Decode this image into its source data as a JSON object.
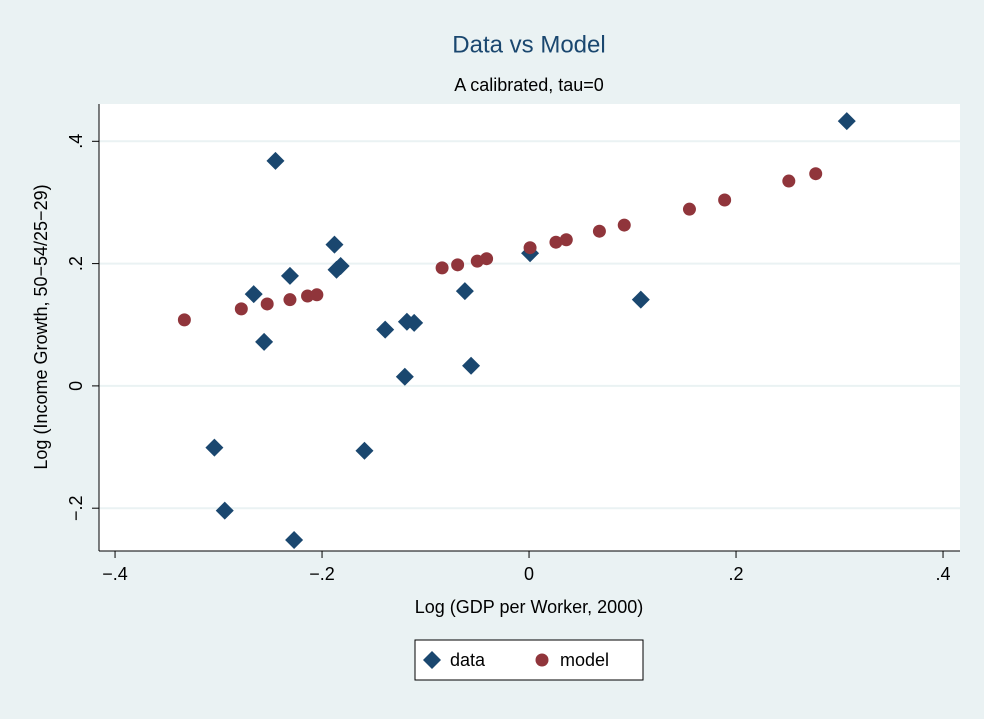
{
  "chart_data": {
    "type": "scatter",
    "title": "Data vs Model",
    "subtitle": "A calibrated, tau=0",
    "x_label": "Log (GDP per Worker, 2000)",
    "y_label": "Log (Income Growth, 50−54/25−29)",
    "xlim": [
      -0.4155,
      0.4164
    ],
    "ylim": [
      -0.27,
      0.461
    ],
    "xticks": [
      {
        "value": -0.4,
        "label": "−.4"
      },
      {
        "value": -0.2,
        "label": "−.2"
      },
      0,
      {
        "value": 0.2,
        "label": ".2"
      },
      {
        "value": 0.4,
        "label": ".4"
      }
    ],
    "yticks": [
      {
        "value": -0.2,
        "label": "−.2"
      },
      0,
      {
        "value": 0.2,
        "label": ".2"
      },
      {
        "value": 0.4,
        "label": ".4"
      }
    ],
    "grid": true,
    "legend": "bottom",
    "series": [
      {
        "name": "data",
        "color": "#1a476f",
        "marker": "diamond",
        "x": [
          0.307,
          -0.245,
          -0.188,
          -0.231,
          -0.186,
          -0.182,
          -0.266,
          -0.256,
          -0.139,
          -0.118,
          -0.111,
          -0.062,
          0.001,
          0.108,
          -0.12,
          -0.056,
          -0.159,
          -0.304,
          -0.294,
          -0.227
        ],
        "values": [
          0.433,
          0.368,
          0.231,
          0.18,
          0.19,
          0.196,
          0.15,
          0.072,
          0.092,
          0.105,
          0.103,
          0.155,
          0.217,
          0.141,
          0.015,
          0.033,
          -0.106,
          -0.101,
          -0.204,
          -0.252
        ]
      },
      {
        "name": "model",
        "color": "#90353b",
        "marker": "circle",
        "x": [
          -0.333,
          -0.278,
          -0.253,
          -0.231,
          -0.214,
          -0.205,
          -0.084,
          -0.069,
          -0.05,
          -0.041,
          0.001,
          0.026,
          0.036,
          0.068,
          0.092,
          0.155,
          0.189,
          0.251,
          0.277
        ],
        "values": [
          0.108,
          0.126,
          0.134,
          0.141,
          0.147,
          0.149,
          0.193,
          0.198,
          0.204,
          0.208,
          0.226,
          0.235,
          0.239,
          0.253,
          0.263,
          0.289,
          0.304,
          0.335,
          0.347
        ]
      }
    ]
  }
}
